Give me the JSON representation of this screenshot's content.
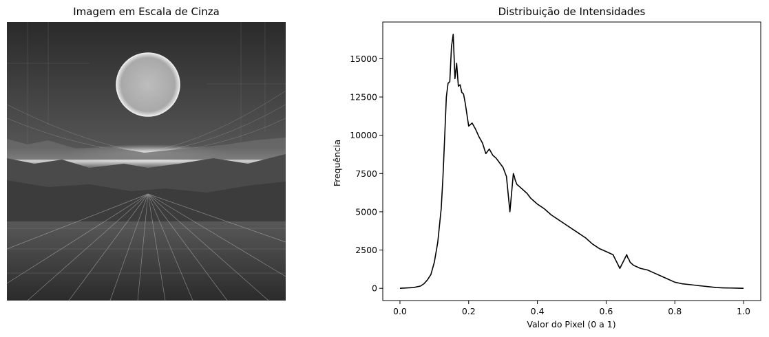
{
  "left_panel": {
    "title": "Imagem em Escala de Cinza"
  },
  "chart_data": {
    "type": "line",
    "title": "Distribuição de Intensidades",
    "xlabel": "Valor do Pixel (0 a 1)",
    "ylabel": "Frequência",
    "xlim": [
      -0.05,
      1.05
    ],
    "ylim": [
      -800,
      17400
    ],
    "xticks": [
      0.0,
      0.2,
      0.4,
      0.6,
      0.8,
      1.0
    ],
    "xtick_labels": [
      "0.0",
      "0.2",
      "0.4",
      "0.6",
      "0.8",
      "1.0"
    ],
    "yticks": [
      0,
      2500,
      5000,
      7500,
      10000,
      12500,
      15000
    ],
    "ytick_labels": [
      "0",
      "2500",
      "5000",
      "7500",
      "10000",
      "12500",
      "15000"
    ],
    "grid": false,
    "series": [
      {
        "color": "#000000",
        "x": [
          0.0,
          0.04,
          0.06,
          0.07,
          0.08,
          0.09,
          0.1,
          0.11,
          0.12,
          0.125,
          0.13,
          0.135,
          0.14,
          0.145,
          0.15,
          0.155,
          0.16,
          0.165,
          0.17,
          0.175,
          0.18,
          0.185,
          0.19,
          0.2,
          0.21,
          0.22,
          0.23,
          0.235,
          0.24,
          0.25,
          0.26,
          0.265,
          0.27,
          0.28,
          0.29,
          0.3,
          0.31,
          0.32,
          0.33,
          0.333,
          0.335,
          0.34,
          0.35,
          0.36,
          0.37,
          0.38,
          0.39,
          0.4,
          0.42,
          0.44,
          0.46,
          0.48,
          0.5,
          0.52,
          0.54,
          0.56,
          0.58,
          0.6,
          0.62,
          0.64,
          0.66,
          0.663,
          0.666,
          0.67,
          0.68,
          0.7,
          0.72,
          0.74,
          0.76,
          0.78,
          0.8,
          0.82,
          0.84,
          0.86,
          0.88,
          0.9,
          0.92,
          0.94,
          0.96,
          0.98,
          1.0
        ],
        "y": [
          0,
          50,
          150,
          300,
          550,
          900,
          1700,
          3000,
          5200,
          7200,
          9800,
          12500,
          13400,
          13500,
          15800,
          16600,
          13700,
          14700,
          13200,
          13300,
          12800,
          12700,
          12100,
          10600,
          10800,
          10400,
          9900,
          9700,
          9500,
          8800,
          9100,
          8900,
          8700,
          8500,
          8200,
          7900,
          7300,
          5000,
          7500,
          7300,
          7100,
          6800,
          6600,
          6400,
          6200,
          5900,
          5700,
          5500,
          5200,
          4800,
          4500,
          4200,
          3900,
          3600,
          3300,
          2900,
          2600,
          2400,
          2200,
          1300,
          2200,
          2000,
          1900,
          1700,
          1500,
          1300,
          1200,
          1000,
          800,
          600,
          400,
          300,
          250,
          200,
          150,
          100,
          50,
          30,
          20,
          10,
          0
        ]
      }
    ]
  }
}
